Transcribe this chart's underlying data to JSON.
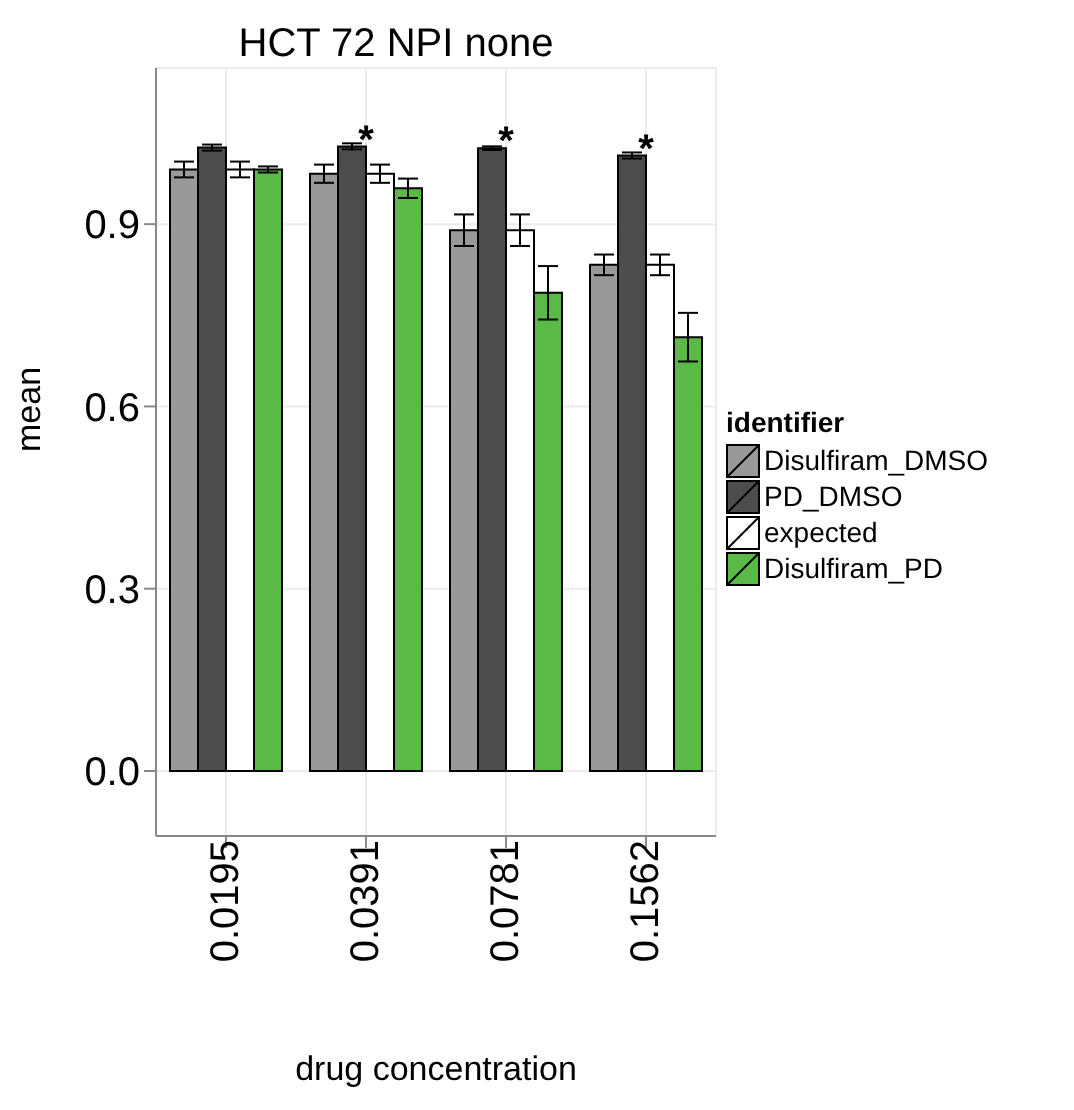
{
  "chart_data": {
    "type": "bar",
    "title": "HCT 72 NPI none",
    "xlabel": "drug concentration",
    "ylabel": "mean",
    "legend_title": "identifier",
    "categories": [
      "0.0195",
      "0.0391",
      "0.0781",
      "0.1562"
    ],
    "series": [
      {
        "name": "Disulfiram_DMSO",
        "color": "#999999",
        "values": [
          0.99,
          0.983,
          0.89,
          0.833
        ],
        "errors": [
          0.013,
          0.015,
          0.026,
          0.017
        ]
      },
      {
        "name": "PD_DMSO",
        "color": "#4d4d4d",
        "values": [
          1.026,
          1.028,
          1.025,
          1.013
        ],
        "errors": [
          0.005,
          0.005,
          0.003,
          0.005
        ]
      },
      {
        "name": "expected",
        "color": "#ffffff",
        "values": [
          0.99,
          0.983,
          0.89,
          0.833
        ],
        "errors": [
          0.013,
          0.015,
          0.026,
          0.017
        ]
      },
      {
        "name": "Disulfiram_PD",
        "color": "#5bb947",
        "values": [
          0.99,
          0.959,
          0.787,
          0.714
        ],
        "errors": [
          0.005,
          0.016,
          0.044,
          0.04
        ]
      }
    ],
    "annotations": [
      {
        "text": "*",
        "x": "0.0391",
        "y": 1.028
      },
      {
        "text": "*",
        "x": "0.0781",
        "y": 1.025
      },
      {
        "text": "*",
        "x": "0.1562",
        "y": 1.013
      }
    ],
    "ylim": [
      -0.107,
      1.157
    ],
    "yticks": [
      {
        "value": 0,
        "label": "0.0"
      },
      {
        "value": 0.3,
        "label": "0.3"
      },
      {
        "value": 0.6,
        "label": "0.6"
      },
      {
        "value": 0.9,
        "label": "0.9"
      }
    ],
    "grid": true,
    "legend": "right"
  }
}
